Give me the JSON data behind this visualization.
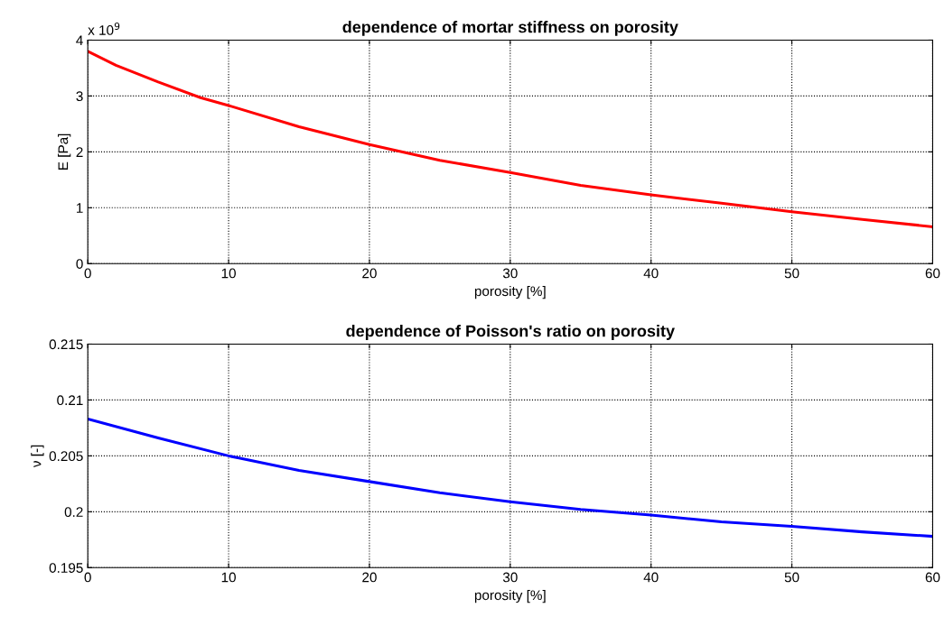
{
  "chart_data": [
    {
      "type": "line",
      "title": "dependence of mortar stiffness on porosity",
      "xlabel": "porosity [%]",
      "ylabel": "E [Pa]",
      "annotations": [
        "x 10$^{9}$"
      ],
      "x": [
        0,
        2,
        5,
        8,
        10,
        15,
        20,
        25,
        30,
        35,
        40,
        45,
        50,
        55,
        60
      ],
      "series": [
        {
          "color": "#ff0000",
          "values": [
            3.8,
            3.55,
            3.25,
            2.97,
            2.83,
            2.45,
            2.13,
            1.85,
            1.63,
            1.4,
            1.23,
            1.08,
            0.93,
            0.79,
            0.66
          ]
        }
      ],
      "xlim": [
        0,
        60
      ],
      "xticks": [
        0,
        10,
        20,
        30,
        40,
        50,
        60
      ],
      "ylim": [
        0,
        4
      ],
      "yticks": [
        0,
        1,
        2,
        3,
        4
      ],
      "grid": true,
      "line_style": "solid"
    },
    {
      "type": "line",
      "title": "dependence of Poisson's ratio on porosity",
      "xlabel": "porosity [%]",
      "ylabel": "ν [-]",
      "x": [
        0,
        5,
        10,
        15,
        20,
        25,
        30,
        35,
        40,
        45,
        50,
        55,
        60
      ],
      "series": [
        {
          "color": "#0000ff",
          "values": [
            0.2083,
            0.2066,
            0.205,
            0.2037,
            0.2027,
            0.2017,
            0.2009,
            0.2002,
            0.1997,
            0.1991,
            0.1987,
            0.1982,
            0.1978
          ]
        }
      ],
      "xlim": [
        0,
        60
      ],
      "xticks": [
        0,
        10,
        20,
        30,
        40,
        50,
        60
      ],
      "ylim": [
        0.195,
        0.215
      ],
      "yticks": [
        0.195,
        0.2,
        0.205,
        0.21,
        0.215
      ],
      "grid": true,
      "line_style": "solid"
    }
  ]
}
